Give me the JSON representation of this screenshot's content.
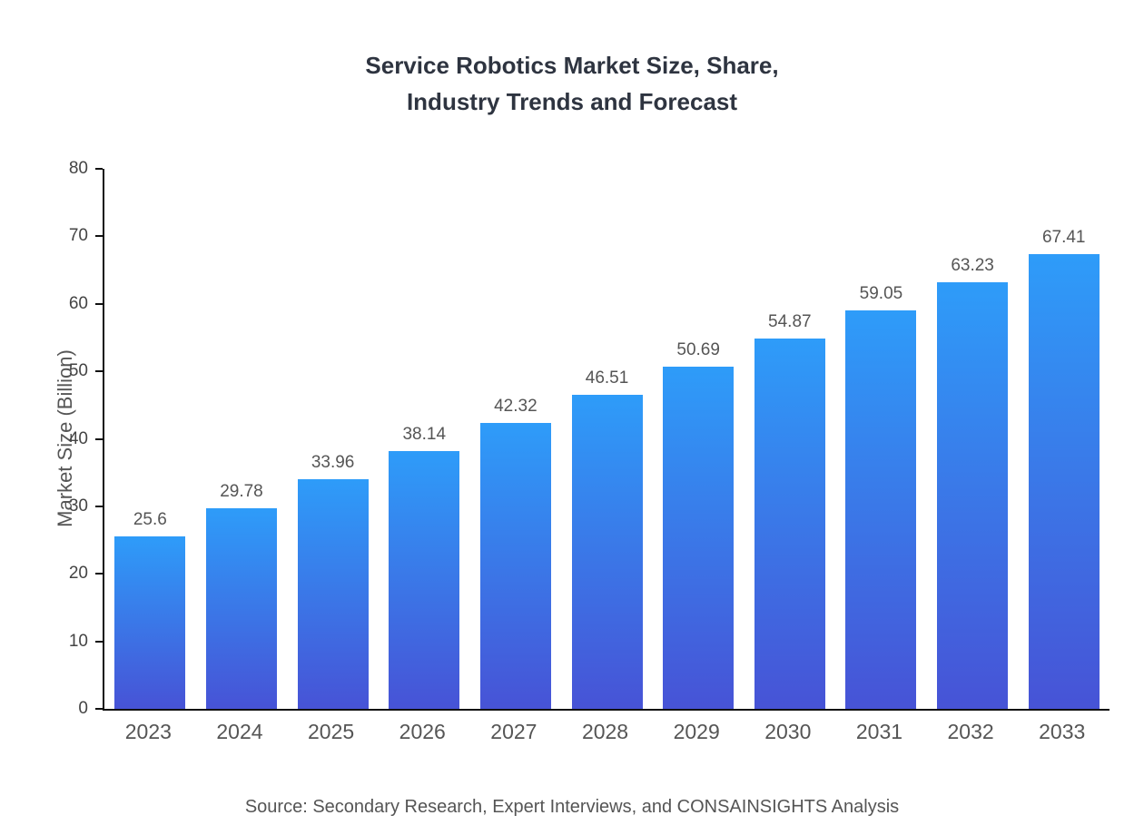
{
  "title": {
    "line1": "Service Robotics Market Size, Share,",
    "line2": "Industry Trends and Forecast"
  },
  "source": "Source: Secondary Research, Expert Interviews, and CONSAINSIGHTS Analysis",
  "chart_data": {
    "type": "bar",
    "title": "Service Robotics Market Size, Share, Industry Trends and Forecast",
    "categories": [
      "2023",
      "2024",
      "2025",
      "2026",
      "2027",
      "2028",
      "2029",
      "2030",
      "2031",
      "2032",
      "2033"
    ],
    "values": [
      25.6,
      29.78,
      33.96,
      38.14,
      42.32,
      46.51,
      50.69,
      54.87,
      59.05,
      63.23,
      67.41
    ],
    "value_labels": [
      "25.6",
      "29.78",
      "33.96",
      "38.14",
      "42.32",
      "46.51",
      "50.69",
      "54.87",
      "59.05",
      "63.23",
      "67.41"
    ],
    "xlabel": "",
    "ylabel": "Market Size (Billion)",
    "ylim": [
      0,
      80
    ],
    "yticks": [
      0,
      10,
      20,
      30,
      40,
      50,
      60,
      70,
      80
    ],
    "grid": false,
    "legend": "none",
    "bar_color_top": "#2E9CF9",
    "bar_color_bottom": "#4753D6"
  },
  "colors": {
    "title": "#2e3440",
    "axis": "#111111",
    "tick_label": "#444444",
    "value_label": "#555555",
    "source": "#555555"
  }
}
